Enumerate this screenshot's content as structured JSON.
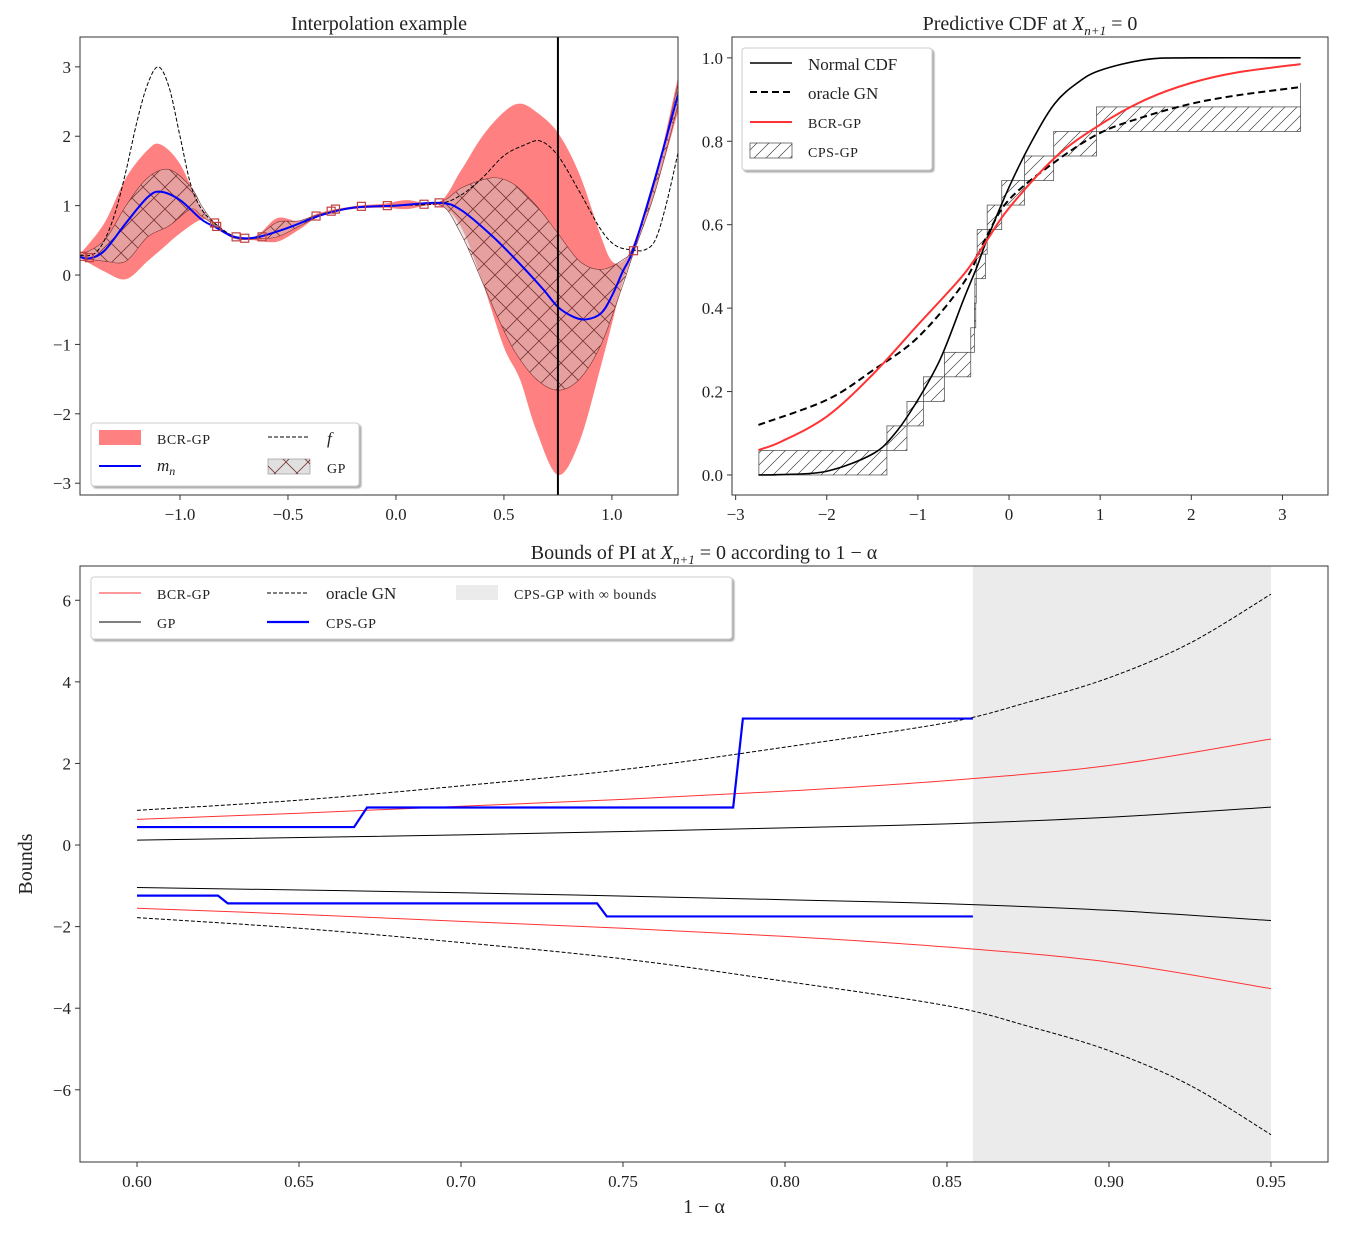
{
  "chart_data": [
    {
      "type": "line",
      "title": {
        "text": "Interpolation example"
      },
      "xlim": [
        -1.463,
        1.306
      ],
      "ylim": [
        -3.17,
        3.43
      ],
      "xticks": [
        -1.0,
        -0.5,
        0.0,
        0.5,
        1.0
      ],
      "xtick_labels": [
        "−1.0",
        "−0.5",
        "0.0",
        "0.5",
        "1.0"
      ],
      "yticks": [
        -3,
        -2,
        -1,
        0,
        1,
        2,
        3
      ],
      "ytick_labels": [
        "−3",
        "−2",
        "−1",
        "0",
        "1",
        "2",
        "3"
      ],
      "grid": false,
      "vline_x": 0.75,
      "legend": {
        "position": "lower left",
        "entries": [
          "BCR-GP",
          "f",
          "m",
          "n",
          "GP"
        ]
      },
      "colors": {
        "bcr_band": "#ff8080",
        "mean": "#0000ff",
        "f": "#000000",
        "gp_hatch": "#7a3535",
        "points": "#c04040"
      },
      "f": {
        "x": [
          -1.463,
          -1.4,
          -1.35,
          -1.3,
          -1.25,
          -1.2,
          -1.15,
          -1.1,
          -1.05,
          -1.0,
          -0.95,
          -0.9,
          -0.84,
          -0.75,
          -0.65,
          -0.5,
          -0.35,
          -0.2,
          0,
          0.2,
          0.3,
          0.4,
          0.5,
          0.6,
          0.67,
          0.75,
          0.85,
          0.95,
          1.02,
          1.1,
          1.15,
          1.2,
          1.25,
          1.306
        ],
        "y": [
          0.28,
          0.3,
          0.5,
          0.9,
          1.5,
          2.2,
          2.75,
          3.0,
          2.7,
          2.0,
          1.3,
          0.95,
          0.75,
          0.56,
          0.54,
          0.68,
          0.86,
          0.97,
          1.0,
          1.03,
          1.15,
          1.4,
          1.72,
          1.88,
          1.93,
          1.72,
          1.2,
          0.65,
          0.42,
          0.36,
          0.36,
          0.5,
          1.0,
          1.76
        ]
      },
      "mean": {
        "x": [
          -1.463,
          -1.42,
          -1.35,
          -1.25,
          -1.15,
          -1.09,
          -1.0,
          -0.9,
          -0.83,
          -0.75,
          -0.65,
          -0.5,
          -0.35,
          -0.2,
          0,
          0.2,
          0.3,
          0.45,
          0.58,
          0.68,
          0.75,
          0.82,
          0.88,
          0.95,
          1.0,
          1.05,
          1.1,
          1.2,
          1.306
        ],
        "y": [
          0.26,
          0.24,
          0.35,
          0.75,
          1.12,
          1.2,
          1.08,
          0.8,
          0.68,
          0.55,
          0.54,
          0.68,
          0.86,
          0.97,
          1.0,
          1.04,
          0.94,
          0.55,
          0.14,
          -0.2,
          -0.46,
          -0.6,
          -0.64,
          -0.55,
          -0.3,
          0.05,
          0.38,
          1.4,
          2.6
        ]
      },
      "bcr_band": {
        "x": [
          -1.463,
          -1.35,
          -1.25,
          -1.15,
          -1.09,
          -1.0,
          -0.9,
          -0.84,
          -0.75,
          -0.65,
          -0.55,
          -0.45,
          -0.35,
          -0.2,
          -0.05,
          0.05,
          0.2,
          0.3,
          0.4,
          0.5,
          0.574,
          0.65,
          0.75,
          0.85,
          0.95,
          1.0,
          1.05,
          1.1,
          1.2,
          1.306
        ],
        "upper": [
          0.3,
          0.75,
          1.4,
          1.8,
          1.88,
          1.6,
          0.95,
          0.75,
          0.57,
          0.56,
          0.82,
          0.78,
          0.9,
          0.99,
          1.03,
          1.08,
          1.05,
          1.5,
          2.0,
          2.35,
          2.47,
          2.35,
          2.05,
          1.45,
          0.55,
          0.2,
          0.2,
          0.45,
          1.4,
          2.85
        ],
        "lower": [
          0.25,
          0.05,
          -0.06,
          0.2,
          0.36,
          0.6,
          0.8,
          0.73,
          0.53,
          0.5,
          0.48,
          0.65,
          0.85,
          0.95,
          0.97,
          0.95,
          1.0,
          0.7,
          -0.1,
          -1.04,
          -1.5,
          -2.24,
          -2.88,
          -2.4,
          -1.3,
          -0.7,
          -0.1,
          0.3,
          1.2,
          2.35
        ]
      },
      "gp_band": {
        "x": [
          -1.463,
          -1.35,
          -1.25,
          -1.15,
          -1.05,
          -0.95,
          -0.9,
          -0.84,
          -0.75,
          -0.65,
          -0.55,
          -0.45,
          -0.35,
          -0.2,
          0,
          0.2,
          0.3,
          0.4,
          0.47,
          0.55,
          0.65,
          0.75,
          0.85,
          0.95,
          1.05,
          1.1,
          1.2,
          1.306
        ],
        "upper": [
          0.28,
          0.5,
          1.0,
          1.4,
          1.52,
          1.27,
          1.0,
          0.75,
          0.56,
          0.55,
          0.76,
          0.78,
          0.88,
          0.98,
          1.01,
          1.05,
          1.25,
          1.37,
          1.4,
          1.3,
          1.0,
          0.6,
          0.2,
          0.08,
          0.22,
          0.42,
          1.35,
          2.75
        ],
        "lower": [
          0.25,
          0.2,
          0.2,
          0.55,
          0.71,
          0.95,
          0.85,
          0.72,
          0.53,
          0.52,
          0.55,
          0.7,
          0.85,
          0.97,
          0.99,
          1.02,
          0.6,
          -0.1,
          -0.6,
          -1.1,
          -1.5,
          -1.66,
          -1.5,
          -1.0,
          -0.15,
          0.32,
          1.2,
          2.45
        ]
      },
      "observations": {
        "x": [
          -1.45,
          -1.42,
          -0.84,
          -0.83,
          -0.74,
          -0.7,
          -0.62,
          -0.37,
          -0.3,
          -0.28,
          -0.16,
          -0.04,
          0.13,
          0.2,
          1.1
        ],
        "y": [
          0.27,
          0.25,
          0.75,
          0.7,
          0.55,
          0.53,
          0.55,
          0.85,
          0.92,
          0.95,
          0.99,
          1.0,
          1.02,
          1.04,
          0.35
        ]
      }
    },
    {
      "type": "line",
      "title": {
        "text": "Predictive CDF at ",
        "var": "X",
        "sub": "n+1",
        "post": " = 0"
      },
      "xlim": [
        -3.04,
        3.5
      ],
      "ylim": [
        -0.048,
        1.05
      ],
      "xticks": [
        -3,
        -2,
        -1,
        0,
        1,
        2,
        3
      ],
      "xtick_labels": [
        "−3",
        "−2",
        "−1",
        "0",
        "1",
        "2",
        "3"
      ],
      "yticks": [
        0.0,
        0.2,
        0.4,
        0.6,
        0.8,
        1.0
      ],
      "ytick_labels": [
        "0.0",
        "0.2",
        "0.4",
        "0.6",
        "0.8",
        "1.0"
      ],
      "grid": false,
      "legend": {
        "position": "upper left",
        "entries": [
          "Normal CDF",
          "oracle GN",
          "BCR-GP",
          "CPS-GP"
        ]
      },
      "colors": {
        "normal": "#000000",
        "oracle": "#000000",
        "bcr": "#ff3333",
        "cps": "#444444"
      },
      "series": [
        {
          "name": "Normal CDF",
          "x": [
            -2.75,
            -2.5,
            -2,
            -1.5,
            -1.25,
            -1,
            -0.75,
            -0.5,
            -0.35,
            -0.25,
            0,
            0.25,
            0.5,
            0.75,
            1,
            1.5,
            2,
            3.2
          ],
          "y": [
            0.0,
            0.001,
            0.009,
            0.05,
            0.1,
            0.18,
            0.28,
            0.42,
            0.5,
            0.56,
            0.69,
            0.8,
            0.89,
            0.94,
            0.97,
            0.996,
            1.0,
            1.0
          ]
        },
        {
          "name": "oracle GN",
          "x": [
            -2.75,
            -2,
            -1.5,
            -1,
            -0.5,
            -0.25,
            0,
            0.5,
            1,
            1.5,
            2,
            2.5,
            3.2
          ],
          "y": [
            0.12,
            0.18,
            0.25,
            0.33,
            0.46,
            0.57,
            0.66,
            0.75,
            0.82,
            0.86,
            0.89,
            0.91,
            0.93
          ]
        },
        {
          "name": "BCR-GP",
          "x": [
            -2.75,
            -2.5,
            -2,
            -1.5,
            -1,
            -0.5,
            -0.25,
            0,
            0.5,
            1,
            1.5,
            2,
            2.5,
            3.2
          ],
          "y": [
            0.06,
            0.08,
            0.14,
            0.24,
            0.36,
            0.48,
            0.56,
            0.64,
            0.76,
            0.84,
            0.9,
            0.94,
            0.965,
            0.985
          ]
        }
      ],
      "cps_steps": [
        {
          "x0": -2.745,
          "x1": -1.34,
          "y0": 0.0,
          "y1": 0.0588
        },
        {
          "x0": -1.34,
          "x1": -1.12,
          "y0": 0.0588,
          "y1": 0.1176
        },
        {
          "x0": -1.12,
          "x1": -0.94,
          "y0": 0.1176,
          "y1": 0.1765
        },
        {
          "x0": -0.94,
          "x1": -0.71,
          "y0": 0.1765,
          "y1": 0.2353
        },
        {
          "x0": -0.71,
          "x1": -0.42,
          "y0": 0.2353,
          "y1": 0.2941
        },
        {
          "x0": -0.42,
          "x1": -0.38,
          "y0": 0.2941,
          "y1": 0.3529
        },
        {
          "x0": -0.38,
          "x1": -0.365,
          "y0": 0.3529,
          "y1": 0.4118
        },
        {
          "x0": -0.375,
          "x1": -0.36,
          "y0": 0.4118,
          "y1": 0.4706
        },
        {
          "x0": -0.36,
          "x1": -0.26,
          "y0": 0.4706,
          "y1": 0.5294
        },
        {
          "x0": -0.35,
          "x1": -0.24,
          "y0": 0.5294,
          "y1": 0.5882
        },
        {
          "x0": -0.24,
          "x1": -0.08,
          "y0": 0.5882,
          "y1": 0.6471
        },
        {
          "x0": -0.08,
          "x1": 0.17,
          "y0": 0.6471,
          "y1": 0.7059
        },
        {
          "x0": 0.17,
          "x1": 0.49,
          "y0": 0.7059,
          "y1": 0.7647
        },
        {
          "x0": 0.49,
          "x1": 0.96,
          "y0": 0.7647,
          "y1": 0.8235
        },
        {
          "x0": 0.96,
          "x1": 3.2,
          "y0": 0.8235,
          "y1": 0.8824
        }
      ],
      "cps_last_edge": {
        "x": 3.2,
        "y0": 0.8824,
        "y1": 0.94
      }
    },
    {
      "type": "line",
      "title": {
        "text": "Bounds of PI at ",
        "var": "X",
        "sub": "n+1",
        "post": " = 0 according to 1 − α"
      },
      "xlabel": "1 − α",
      "ylabel": "Bounds",
      "xlim": [
        0.5824,
        0.9676
      ],
      "ylim": [
        -7.77,
        6.84
      ],
      "xticks": [
        0.6,
        0.65,
        0.7,
        0.75,
        0.8,
        0.85,
        0.9,
        0.95
      ],
      "xtick_labels": [
        "0.60",
        "0.65",
        "0.70",
        "0.75",
        "0.80",
        "0.85",
        "0.90",
        "0.95"
      ],
      "yticks": [
        -6,
        -4,
        -2,
        0,
        2,
        4,
        6
      ],
      "ytick_labels": [
        "−6",
        "−4",
        "−2",
        "0",
        "2",
        "4",
        "6"
      ],
      "grid": false,
      "legend": {
        "position": "upper left",
        "entries": [
          "BCR-GP",
          "GP",
          "oracle GN",
          "CPS-GP",
          "CPS-GP with ∞ bounds"
        ]
      },
      "colors": {
        "bcr": "#ff3333",
        "gp": "#000000",
        "oracle": "#000000",
        "cps": "#0000ff",
        "infinite_region": "#ebebeb"
      },
      "infinite_region": [
        0.858,
        0.95
      ],
      "series": [
        {
          "name": "oracle GN",
          "bound": "upper",
          "x": [
            0.6,
            0.65,
            0.7,
            0.75,
            0.8,
            0.85,
            0.875,
            0.9,
            0.925,
            0.95
          ],
          "y": [
            0.85,
            1.1,
            1.45,
            1.85,
            2.4,
            3.0,
            3.5,
            4.1,
            4.95,
            6.15
          ]
        },
        {
          "name": "oracle GN",
          "bound": "lower",
          "x": [
            0.6,
            0.65,
            0.7,
            0.75,
            0.8,
            0.85,
            0.875,
            0.9,
            0.925,
            0.95
          ],
          "y": [
            -1.78,
            -2.04,
            -2.39,
            -2.79,
            -3.34,
            -3.94,
            -4.44,
            -5.04,
            -5.89,
            -7.1
          ]
        },
        {
          "name": "BCR-GP",
          "bound": "upper",
          "x": [
            0.6,
            0.65,
            0.7,
            0.75,
            0.8,
            0.85,
            0.9,
            0.95
          ],
          "y": [
            0.63,
            0.78,
            0.95,
            1.12,
            1.32,
            1.58,
            1.95,
            2.6
          ]
        },
        {
          "name": "BCR-GP",
          "bound": "lower",
          "x": [
            0.6,
            0.65,
            0.7,
            0.75,
            0.8,
            0.85,
            0.9,
            0.95
          ],
          "y": [
            -1.55,
            -1.7,
            -1.87,
            -2.04,
            -2.24,
            -2.5,
            -2.87,
            -3.52
          ]
        },
        {
          "name": "GP",
          "bound": "upper",
          "x": [
            0.6,
            0.7,
            0.8,
            0.85,
            0.9,
            0.95
          ],
          "y": [
            0.12,
            0.25,
            0.42,
            0.52,
            0.68,
            0.93
          ]
        },
        {
          "name": "GP",
          "bound": "lower",
          "x": [
            0.6,
            0.7,
            0.8,
            0.85,
            0.9,
            0.95
          ],
          "y": [
            -1.04,
            -1.17,
            -1.34,
            -1.44,
            -1.6,
            -1.85
          ]
        },
        {
          "name": "CPS-GP",
          "bound": "upper",
          "x": [
            0.6,
            0.667,
            0.671,
            0.784,
            0.787,
            0.858
          ],
          "y": [
            0.44,
            0.44,
            0.92,
            0.92,
            3.1,
            3.1
          ]
        },
        {
          "name": "CPS-GP",
          "bound": "lower",
          "x": [
            0.6,
            0.625,
            0.628,
            0.742,
            0.745,
            0.858
          ],
          "y": [
            -1.24,
            -1.24,
            -1.43,
            -1.43,
            -1.75,
            -1.75
          ]
        }
      ]
    }
  ]
}
